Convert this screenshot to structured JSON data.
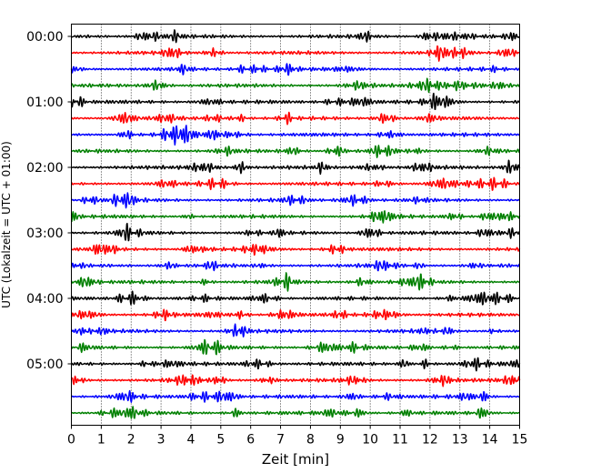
{
  "chart_data": {
    "type": "line",
    "title": "",
    "xlabel": "Zeit  [min]",
    "ylabel": "UTC (Lokalzeit = UTC + 01:00)",
    "xlim": [
      0,
      15
    ],
    "x_ticks": [
      "0",
      "1",
      "2",
      "3",
      "4",
      "5",
      "6",
      "7",
      "8",
      "9",
      "10",
      "11",
      "12",
      "13",
      "14",
      "15"
    ],
    "y_ticks": [
      "00:00",
      "01:00",
      "02:00",
      "03:00",
      "04:00",
      "05:00"
    ],
    "row_interval_min": 15,
    "row_start": "00:00",
    "row_count": 24,
    "colors_cycle": [
      "#000000",
      "#ff0000",
      "#0000ff",
      "#008000"
    ],
    "grid": "vertical dotted at each minute",
    "series_kind": "seismic waveform (noise) traces, one per 15-minute row"
  }
}
